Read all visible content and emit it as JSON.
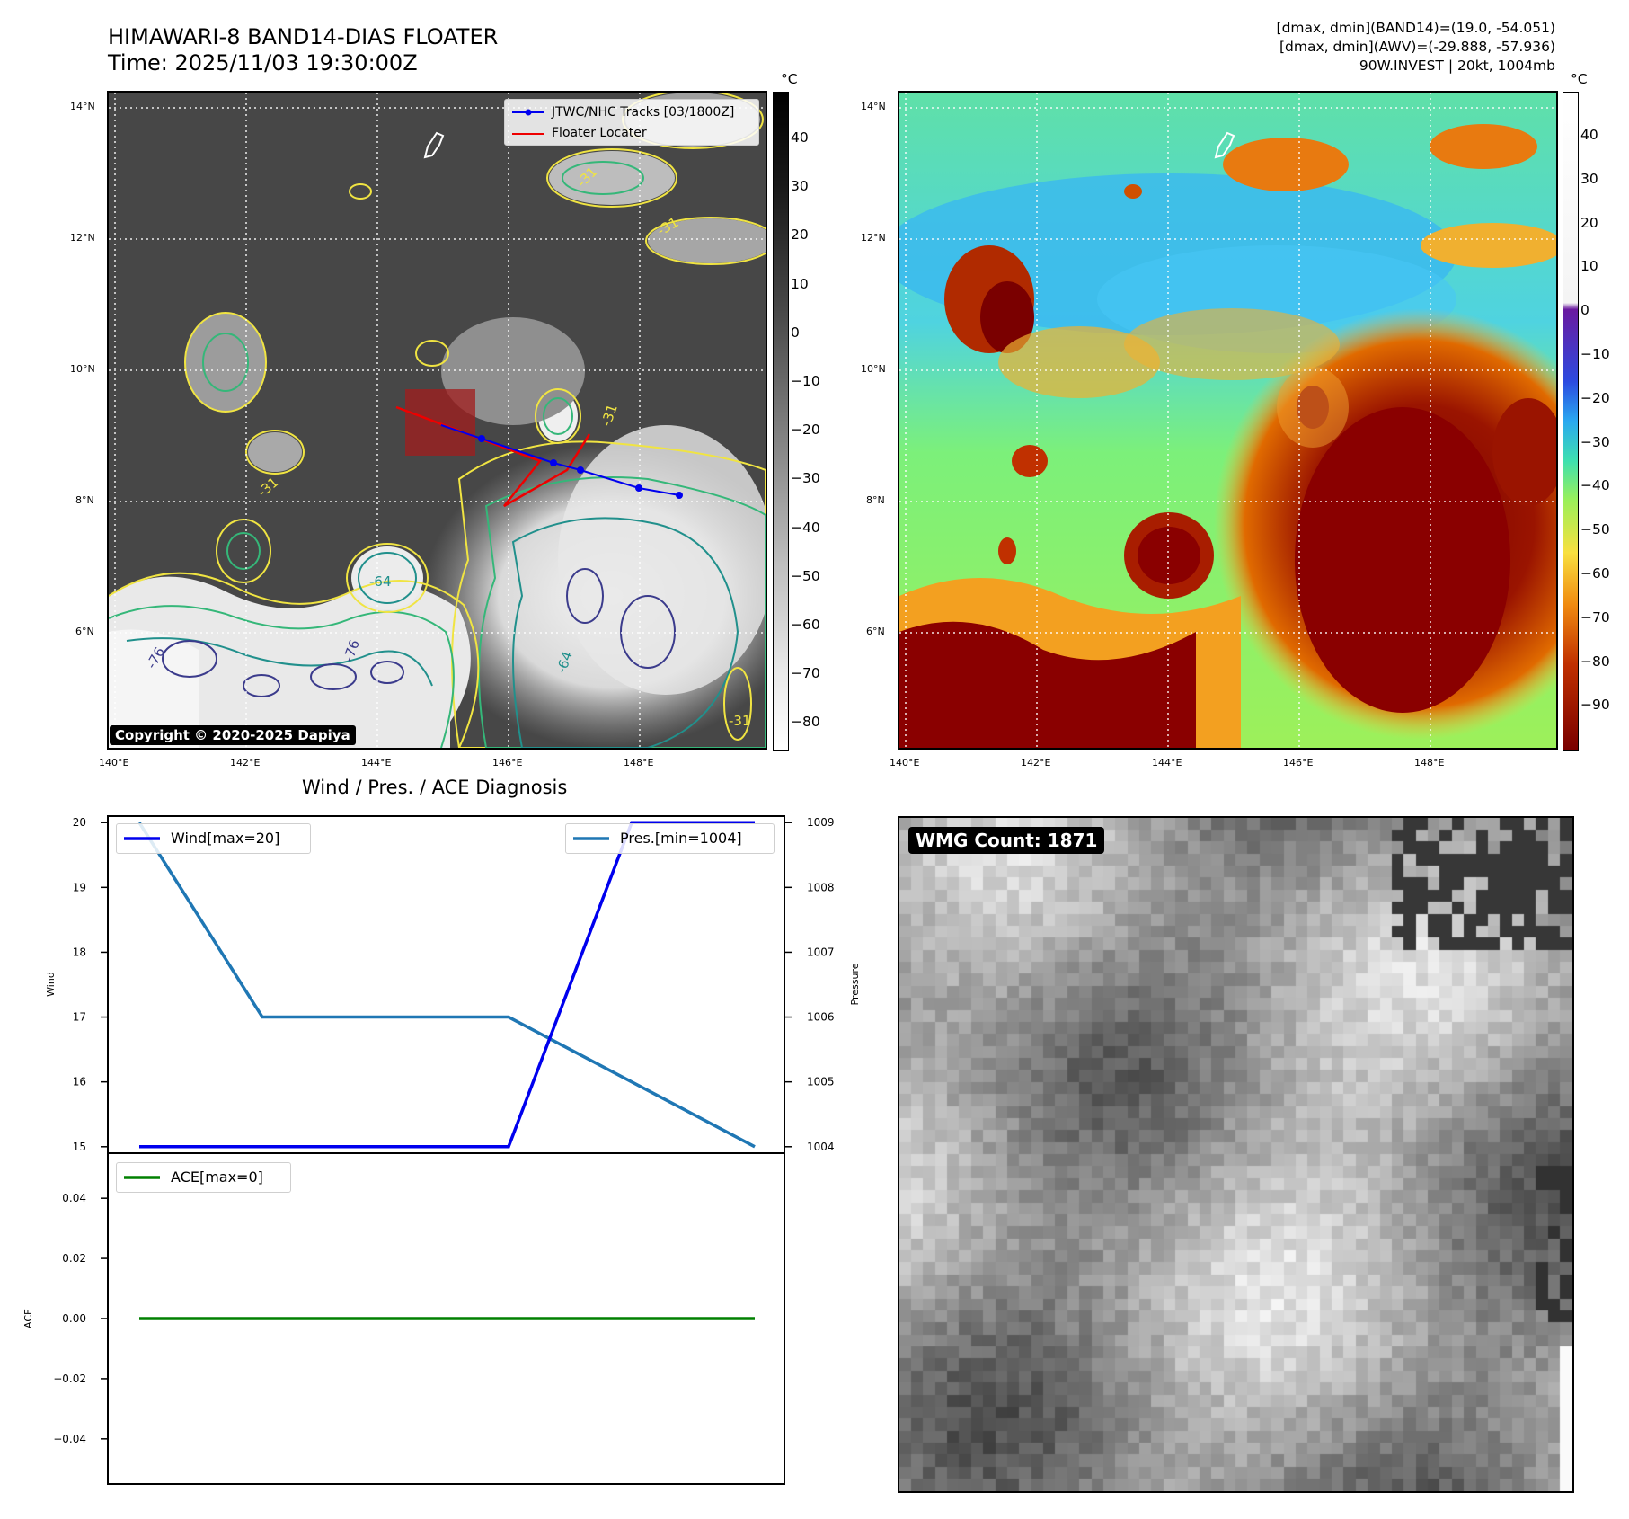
{
  "header": {
    "title_line1": "HIMAWARI-8 BAND14-DIAS FLOATER",
    "title_line2": "Time: 2025/11/03 19:30:00Z",
    "info_line1": "[dmax, dmin](BAND14)=(19.0, -54.051)",
    "info_line2": "[dmax, dmin](AWV)=(-29.888, -57.936)",
    "info_line3": "90W.INVEST | 20kt, 1004mb"
  },
  "map_panel_left": {
    "lat_labels": [
      "14°N",
      "12°N",
      "10°N",
      "8°N",
      "6°N"
    ],
    "lon_labels": [
      "140°E",
      "142°E",
      "144°E",
      "146°E",
      "148°E"
    ],
    "legend": {
      "track_label": "JTWC/NHC Tracks [03/1800Z]",
      "floater_label": "Floater Locater"
    },
    "copyright": "Copyright © 2020-2025 Dapiya",
    "contour_labels": [
      "-31",
      "-31",
      "-31",
      "-31",
      "-64",
      "-64",
      "-76",
      "-76",
      "-31"
    ],
    "colorbar_unit": "°C",
    "colorbar_ticks": [
      "40",
      "30",
      "20",
      "10",
      "0",
      "−10",
      "−20",
      "−30",
      "−40",
      "−50",
      "−60",
      "−70",
      "−80"
    ],
    "track_color": "#0000ee",
    "floater_color": "#ee0000"
  },
  "map_panel_right": {
    "lat_labels": [
      "14°N",
      "12°N",
      "10°N",
      "8°N",
      "6°N"
    ],
    "lon_labels": [
      "140°E",
      "142°E",
      "144°E",
      "146°E",
      "148°E"
    ],
    "colorbar_unit": "°C",
    "colorbar_ticks": [
      "40",
      "30",
      "20",
      "10",
      "0",
      "−10",
      "−20",
      "−30",
      "−40",
      "−50",
      "−60",
      "−70",
      "−80",
      "−90"
    ]
  },
  "diagnosis": {
    "title": "Wind / Pres. / ACE Diagnosis",
    "wind_ylabel": "Wind",
    "pres_ylabel": "Pressure",
    "ace_ylabel": "ACE",
    "wind_legend": "Wind[max=20]",
    "pres_legend": "Pres.[min=1004]",
    "ace_legend": "ACE[max=0]",
    "wind_color": "#0000ee",
    "pres_color": "#1f77b4",
    "ace_color": "#008000"
  },
  "chart_data": [
    {
      "type": "line",
      "x": [
        0,
        1,
        2,
        3,
        4,
        5
      ],
      "series": [
        {
          "name": "Wind[max=20]",
          "axis": "left",
          "values": [
            15,
            15,
            15,
            15,
            20,
            20
          ]
        },
        {
          "name": "Pres.[min=1004]",
          "axis": "right",
          "values": [
            1009,
            1006,
            1006,
            1006,
            1005,
            1004
          ]
        }
      ],
      "ylabel": "Wind",
      "y2label": "Pressure",
      "ylim": [
        14.9,
        20.1
      ],
      "y2lim": [
        1003.9,
        1009.1
      ],
      "yticks": [
        15,
        16,
        17,
        18,
        19,
        20
      ],
      "y2ticks": [
        1004,
        1005,
        1006,
        1007,
        1008,
        1009
      ],
      "grid": false,
      "legend": "top-left / top-right"
    },
    {
      "type": "line",
      "x": [
        0,
        1,
        2,
        3,
        4,
        5
      ],
      "series": [
        {
          "name": "ACE[max=0]",
          "values": [
            0,
            0,
            0,
            0,
            0,
            0
          ]
        }
      ],
      "ylabel": "ACE",
      "ylim": [
        -0.055,
        0.055
      ],
      "yticks": [
        -0.04,
        -0.02,
        0.0,
        0.02,
        0.04
      ],
      "ytick_labels": [
        "−0.04",
        "−0.02",
        "0.00",
        "0.02",
        "0.04"
      ],
      "grid": false,
      "legend": "top-left"
    }
  ],
  "wmg_panel": {
    "count_label": "WMG Count: 1871"
  }
}
